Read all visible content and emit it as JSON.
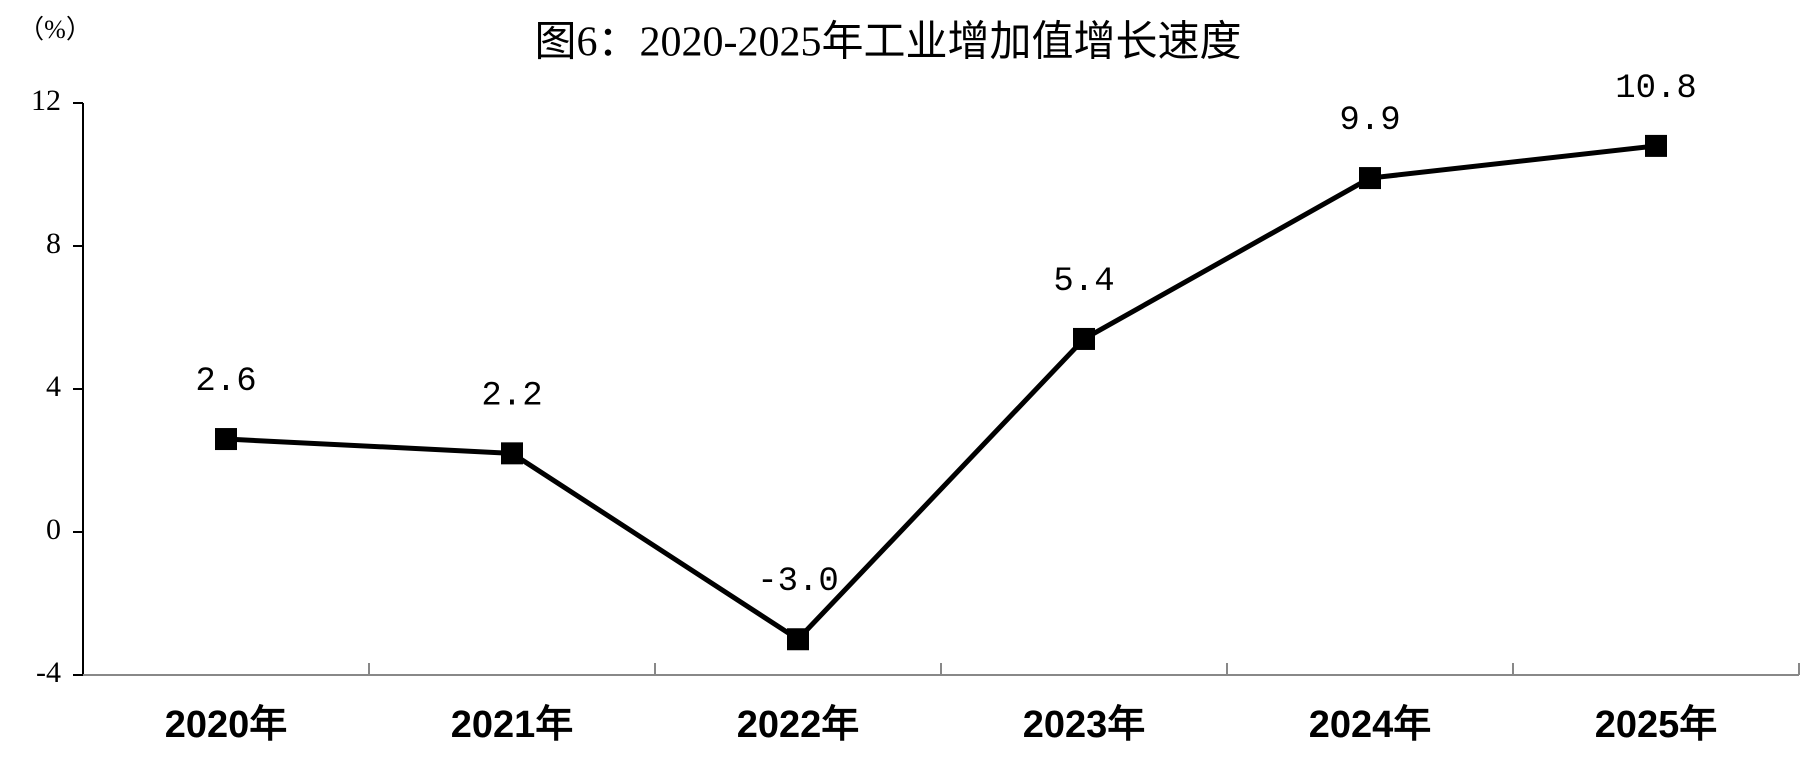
{
  "chart_data": {
    "type": "line",
    "title": "图6：2020-2025年工业增加值增长速度",
    "y_label": "（%）",
    "categories": [
      "2020年",
      "2021年",
      "2022年",
      "2023年",
      "2024年",
      "2025年"
    ],
    "series": [
      {
        "name": "工业增加值增长速度",
        "color": "#000000",
        "values": [
          2.6,
          2.2,
          -3.0,
          5.4,
          9.9,
          10.8
        ],
        "value_labels": [
          "2.6",
          "2.2",
          "-3.0",
          "5.4",
          "9.9",
          "10.8"
        ]
      }
    ],
    "ylim": [
      -4,
      12
    ],
    "yticks": [
      -4,
      0,
      4,
      8,
      12
    ],
    "grid": false
  }
}
